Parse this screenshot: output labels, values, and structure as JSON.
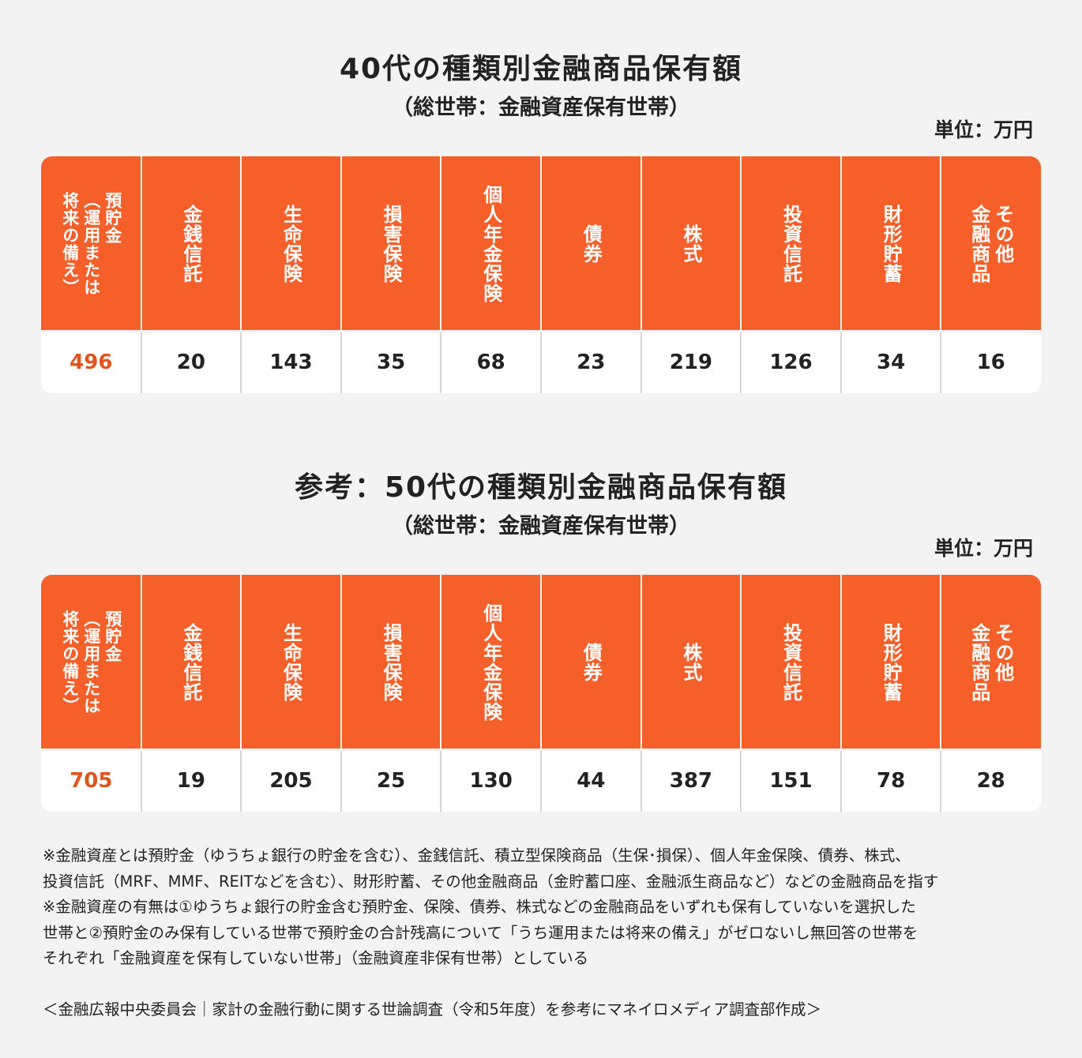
{
  "chart_data": [
    {
      "type": "table",
      "title": "40代の種類別金融商品保有額",
      "subtitle": "（総世帯：金融資産保有世帯）",
      "unit": "単位：万円",
      "categories": [
        "預貯金\n（運用または\n将来の備え）",
        "金銭信託",
        "生命保険",
        "損害保険",
        "個人年金保険",
        "債券",
        "株式",
        "投資信託",
        "財形貯蓄",
        "その他\n金融商品"
      ],
      "values": [
        496,
        20,
        143,
        35,
        68,
        23,
        219,
        126,
        34,
        16
      ],
      "highlight_color": "#e0541e",
      "header_color": "#f45f2a"
    },
    {
      "type": "table",
      "title": "参考：50代の種類別金融商品保有額",
      "subtitle": "（総世帯：金融資産保有世帯）",
      "unit": "単位：万円",
      "categories": [
        "預貯金\n（運用または\n将来の備え）",
        "金銭信託",
        "生命保険",
        "損害保険",
        "個人年金保険",
        "債券",
        "株式",
        "投資信託",
        "財形貯蓄",
        "その他\n金融商品"
      ],
      "values": [
        705,
        19,
        205,
        25,
        130,
        44,
        387,
        151,
        78,
        28
      ],
      "highlight_color": "#e0541e",
      "header_color": "#f45f2a"
    }
  ],
  "notes": [
    "※金融資産とは預貯金（ゆうちょ銀行の貯金を含む）、金銭信託、積立型保険商品（生保･損保）、個人年金保険、債券、株式、",
    "投資信託（MRF、MMF、REITなどを含む）、財形貯蓄、その他金融商品（金貯蓄口座、金融派生商品など）などの金融商品を指す",
    "※金融資産の有無は①ゆうちょ銀行の貯金含む預貯金、保険、債券、株式などの金融商品をいずれも保有していないを選択した",
    "世帯と②預貯金のみ保有している世帯で預貯金の合計残高について「うち運用または将来の備え」がゼロないし無回答の世帯を",
    "それぞれ「金融資産を保有していない世帯」（金融資産非保有世帯）としている"
  ],
  "source": "＜金融広報中央委員会｜家計の金融行動に関する世論調査（令和5年度）を参考にマネイロメディア調査部作成＞"
}
